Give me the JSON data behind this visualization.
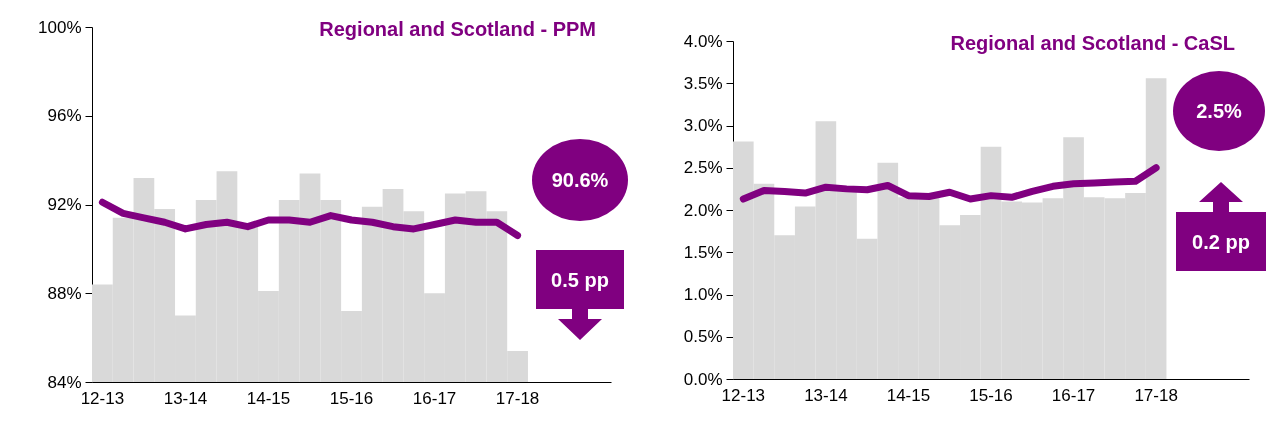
{
  "chart_data": [
    {
      "type": "bar",
      "title": "Regional and Scotland - PPM",
      "categories": [
        "12-13",
        null,
        null,
        null,
        "13-14",
        null,
        null,
        null,
        "14-15",
        null,
        null,
        null,
        "15-16",
        null,
        null,
        null,
        "16-17",
        null,
        null,
        null,
        "17-18",
        null,
        null,
        null,
        null
      ],
      "series": [
        {
          "color": "#d9d9d9",
          "values": [
            88.4,
            91.4,
            93.2,
            91.8,
            87.0,
            92.2,
            93.5,
            91.0,
            88.1,
            92.2,
            93.4,
            92.2,
            87.2,
            91.9,
            92.7,
            91.7,
            88.0,
            92.5,
            92.6,
            91.7,
            85.4,
            null,
            null,
            null,
            null
          ]
        },
        {
          "type": "line",
          "color": "#800080",
          "values": [
            92.1,
            91.6,
            91.4,
            91.2,
            90.9,
            91.1,
            91.2,
            91.0,
            91.3,
            91.3,
            91.2,
            91.5,
            91.3,
            91.2,
            91.0,
            90.9,
            91.1,
            91.3,
            91.2,
            91.2,
            90.6,
            null,
            null,
            null,
            null
          ]
        }
      ],
      "ylim": [
        84,
        100
      ],
      "yticks": [
        {
          "value": 84,
          "label": "84%"
        },
        {
          "value": 88,
          "label": "88%"
        },
        {
          "value": 92,
          "label": "92%"
        },
        {
          "value": 96,
          "label": "96%"
        },
        {
          "value": 100,
          "label": "100%"
        }
      ],
      "annotations": [
        "90.6%",
        "0.5 pp"
      ]
    },
    {
      "type": "bar",
      "title": "Regional and Scotland - CaSL",
      "categories": [
        "12-13",
        null,
        null,
        null,
        "13-14",
        null,
        null,
        null,
        "14-15",
        null,
        null,
        null,
        "15-16",
        null,
        null,
        null,
        "16-17",
        null,
        null,
        null,
        "17-18",
        null,
        null,
        null,
        null
      ],
      "series": [
        {
          "color": "#d9d9d9",
          "values": [
            2.81,
            2.31,
            1.7,
            2.04,
            3.05,
            2.25,
            1.66,
            2.56,
            2.15,
            2.15,
            1.82,
            1.94,
            2.75,
            2.1,
            2.09,
            2.14,
            2.86,
            2.15,
            2.14,
            2.2,
            3.56,
            null,
            null,
            null,
            null
          ]
        },
        {
          "type": "line",
          "color": "#800080",
          "values": [
            2.13,
            2.23,
            2.22,
            2.2,
            2.27,
            2.25,
            2.24,
            2.29,
            2.17,
            2.16,
            2.21,
            2.13,
            2.17,
            2.15,
            2.22,
            2.28,
            2.31,
            2.32,
            2.33,
            2.34,
            2.5,
            null,
            null,
            null,
            null
          ]
        }
      ],
      "ylim": [
        0,
        4
      ],
      "yticks": [
        {
          "value": 0,
          "label": "0.0%"
        },
        {
          "value": 0.5,
          "label": "0.5%"
        },
        {
          "value": 1,
          "label": "1.0%"
        },
        {
          "value": 1.5,
          "label": "1.5%"
        },
        {
          "value": 2,
          "label": "2.0%"
        },
        {
          "value": 2.5,
          "label": "2.5%"
        },
        {
          "value": 3,
          "label": "3.0%"
        },
        {
          "value": 3.5,
          "label": "3.5%"
        },
        {
          "value": 4,
          "label": "4.0%"
        }
      ],
      "annotations": [
        "2.5%",
        "0.2 pp"
      ]
    }
  ]
}
